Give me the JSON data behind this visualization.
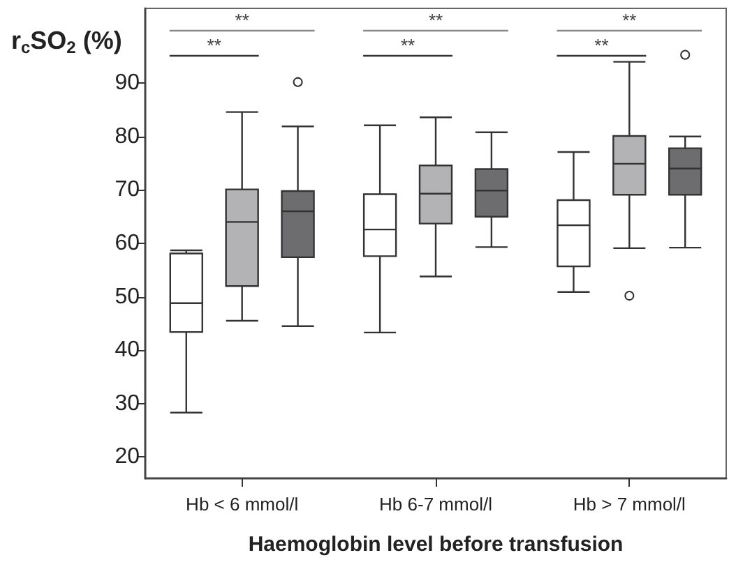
{
  "chart_data": {
    "type": "box",
    "xlabel": "Haemoglobin level before transfusion",
    "ylabel": "r$_{c}$SO$_{2}$ (%)",
    "categories": [
      "Hb < 6 mmol/l",
      "Hb 6-7 mmol/l",
      "Hb > 7 mmol/l"
    ],
    "ylim": [
      16,
      104
    ],
    "yticks": [
      20,
      30,
      40,
      50,
      60,
      70,
      80,
      90
    ],
    "grid": false,
    "series": [
      {
        "color": "#ffffff",
        "boxes": [
          {
            "low": 28.3,
            "q1": 43.4,
            "median": 48.8,
            "q3": 58.1,
            "high": 58.7
          },
          {
            "low": 43.3,
            "q1": 57.6,
            "median": 62.6,
            "q3": 69.2,
            "high": 82.1
          },
          {
            "low": 50.9,
            "q1": 55.7,
            "median": 63.4,
            "q3": 68.1,
            "high": 77.1
          }
        ]
      },
      {
        "color": "#b3b3b5",
        "boxes": [
          {
            "low": 45.5,
            "q1": 52.0,
            "median": 64.0,
            "q3": 70.1,
            "high": 84.6
          },
          {
            "low": 53.8,
            "q1": 63.7,
            "median": 69.3,
            "q3": 74.6,
            "high": 83.6
          },
          {
            "low": 59.1,
            "q1": 69.1,
            "median": 74.9,
            "q3": 80.1,
            "high": 94.0,
            "outliers": [
              50.2
            ]
          }
        ]
      },
      {
        "color": "#6d6d70",
        "boxes": [
          {
            "low": 44.5,
            "q1": 57.4,
            "median": 66.0,
            "q3": 69.8,
            "high": 81.9,
            "outliers": [
              90.2
            ]
          },
          {
            "low": 59.3,
            "q1": 65.0,
            "median": 69.9,
            "q3": 73.9,
            "high": 80.8
          },
          {
            "low": 59.2,
            "q1": 69.1,
            "median": 74.0,
            "q3": 77.8,
            "high": 80.0,
            "outliers": [
              95.3
            ]
          }
        ]
      }
    ],
    "annotations": [
      "**",
      "**",
      "**",
      "**",
      "**",
      "**"
    ]
  }
}
